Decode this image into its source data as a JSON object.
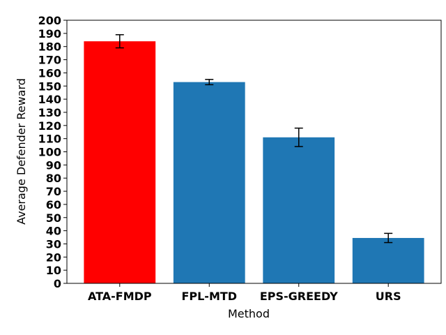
{
  "chart_data": {
    "type": "bar",
    "title": "",
    "xlabel": "Method",
    "ylabel": "Average Defender Reward",
    "categories": [
      "ATA-FMDP",
      "FPL-MTD",
      "EPS-GREEDY",
      "URS"
    ],
    "values": [
      184,
      153,
      111,
      34.5
    ],
    "error": [
      5,
      2,
      7,
      3.5
    ],
    "colors": [
      "#ff0000",
      "#1f77b4",
      "#1f77b4",
      "#1f77b4"
    ],
    "ylim": [
      0,
      200
    ],
    "yticks": [
      0,
      10,
      20,
      30,
      40,
      50,
      60,
      70,
      80,
      90,
      100,
      110,
      120,
      130,
      140,
      150,
      160,
      170,
      180,
      190,
      200
    ],
    "grid": false,
    "legend": "none"
  }
}
